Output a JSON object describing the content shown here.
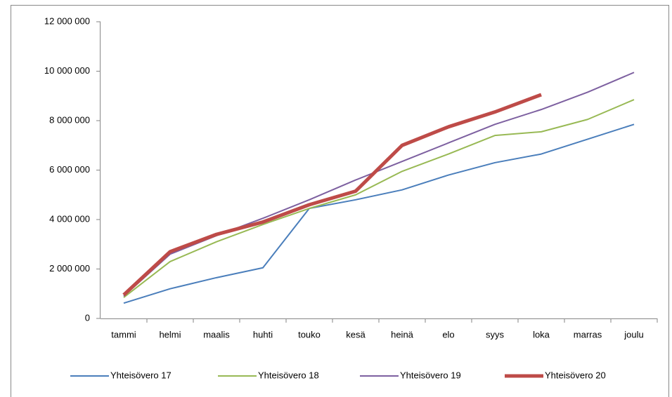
{
  "chart_data": {
    "type": "line",
    "categories": [
      "tammi",
      "helmi",
      "maalis",
      "huhti",
      "touko",
      "kesä",
      "heinä",
      "elo",
      "syys",
      "loka",
      "marras",
      "joulu"
    ],
    "series": [
      {
        "name": "Yhteisövero 17",
        "color": "#4a7ebb",
        "values": [
          620000,
          1200000,
          1650000,
          2050000,
          4450000,
          4800000,
          5200000,
          5800000,
          6300000,
          6650000,
          7250000,
          7850000
        ]
      },
      {
        "name": "Yhteisövero 18",
        "color": "#98b954",
        "values": [
          850000,
          2300000,
          3100000,
          3800000,
          4450000,
          5000000,
          5950000,
          6650000,
          7400000,
          7550000,
          8050000,
          8850000
        ]
      },
      {
        "name": "Yhteisövero 19",
        "color": "#7d60a0",
        "values": [
          900000,
          2600000,
          3350000,
          4050000,
          4800000,
          5600000,
          6350000,
          7100000,
          7850000,
          8450000,
          9150000,
          9950000
        ]
      },
      {
        "name": "Yhteisövero 20",
        "color": "#be4b48",
        "values": [
          950000,
          2700000,
          3400000,
          3900000,
          4600000,
          5150000,
          7000000,
          7750000,
          8350000,
          9050000,
          null,
          null
        ]
      }
    ],
    "ylim": [
      0,
      12000000
    ],
    "yticks": [
      0,
      {
        "value": 2000000,
        "label": "2 000 000"
      },
      {
        "value": 4000000,
        "label": "4 000 000"
      },
      {
        "value": 6000000,
        "label": "6 000 000"
      },
      {
        "value": 8000000,
        "label": "8 000 000"
      },
      {
        "value": 10000000,
        "label": "10 000 000"
      },
      {
        "value": 12000000,
        "label": "12 000 000"
      }
    ],
    "grid": false,
    "legend": "bottom"
  }
}
